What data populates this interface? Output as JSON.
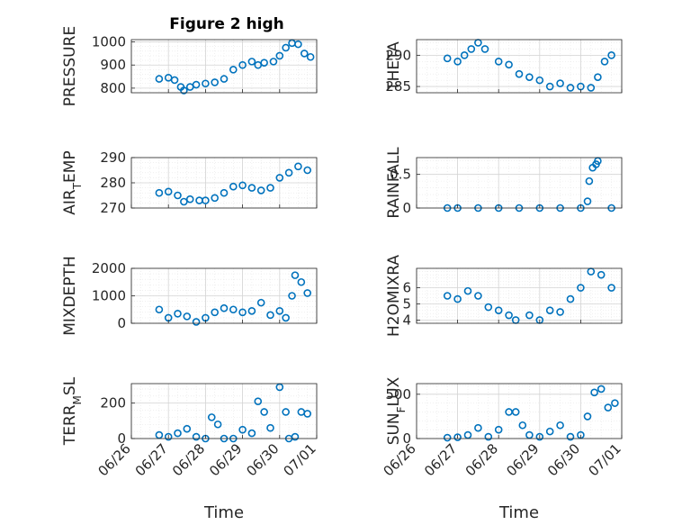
{
  "figure": {
    "title": "Figure 2 high"
  },
  "colors": {
    "marker": "#0072BD",
    "axis": "#262626",
    "grid": "#d4d4d4",
    "minor_grid": "#e6e6e6"
  },
  "chart_data": [
    {
      "type": "scatter",
      "title": "Figure 2 high",
      "ylabel": "PRESSURE",
      "xlabel": "",
      "x_type": "date",
      "xlim": [
        "06/26",
        "07/01"
      ],
      "x_tick_labels": [],
      "ylim": [
        780,
        1010
      ],
      "yticks": [
        800,
        900,
        1000
      ],
      "ytick_labels": [
        "800",
        "900",
        "1000"
      ],
      "grid": true,
      "series": [
        {
          "points": [
            [
              "06/26 18:00",
              840
            ],
            [
              "06/27 00:00",
              845
            ],
            [
              "06/27 04:00",
              835
            ],
            [
              "06/27 08:00",
              805
            ],
            [
              "06/27 10:00",
              790
            ],
            [
              "06/27 14:00",
              805
            ],
            [
              "06/27 18:00",
              815
            ],
            [
              "06/28 00:00",
              820
            ],
            [
              "06/28 06:00",
              825
            ],
            [
              "06/28 12:00",
              840
            ],
            [
              "06/28 18:00",
              880
            ],
            [
              "06/29 00:00",
              900
            ],
            [
              "06/29 06:00",
              915
            ],
            [
              "06/29 10:00",
              900
            ],
            [
              "06/29 14:00",
              910
            ],
            [
              "06/29 20:00",
              915
            ],
            [
              "06/30 00:00",
              940
            ],
            [
              "06/30 04:00",
              975
            ],
            [
              "06/30 08:00",
              995
            ],
            [
              "06/30 12:00",
              990
            ],
            [
              "06/30 16:00",
              950
            ],
            [
              "06/30 20:00",
              935
            ]
          ]
        }
      ]
    },
    {
      "type": "scatter",
      "ylabel": "THETA",
      "xlabel": "",
      "x_type": "date",
      "xlim": [
        "06/26",
        "07/01"
      ],
      "x_tick_labels": [],
      "ylim": [
        284,
        292.5
      ],
      "yticks": [
        285,
        290
      ],
      "ytick_labels": [
        "285",
        "290"
      ],
      "grid": true,
      "series": [
        {
          "points": [
            [
              "06/26 18:00",
              289.5
            ],
            [
              "06/27 00:00",
              289
            ],
            [
              "06/27 04:00",
              290
            ],
            [
              "06/27 08:00",
              291
            ],
            [
              "06/27 12:00",
              292
            ],
            [
              "06/27 16:00",
              291
            ],
            [
              "06/28 00:00",
              289
            ],
            [
              "06/28 06:00",
              288.5
            ],
            [
              "06/28 12:00",
              287
            ],
            [
              "06/28 18:00",
              286.5
            ],
            [
              "06/29 00:00",
              286
            ],
            [
              "06/29 06:00",
              285
            ],
            [
              "06/29 12:00",
              285.5
            ],
            [
              "06/29 18:00",
              284.8
            ],
            [
              "06/30 00:00",
              285
            ],
            [
              "06/30 06:00",
              284.8
            ],
            [
              "06/30 10:00",
              286.5
            ],
            [
              "06/30 14:00",
              289
            ],
            [
              "06/30 18:00",
              290
            ]
          ]
        }
      ]
    },
    {
      "type": "scatter",
      "ylabel": "AIR_TEMP",
      "xlabel": "",
      "x_type": "date",
      "xlim": [
        "06/26",
        "07/01"
      ],
      "x_tick_labels": [],
      "ylim": [
        270,
        290
      ],
      "yticks": [
        270,
        280,
        290
      ],
      "ytick_labels": [
        "270",
        "280",
        "290"
      ],
      "grid": true,
      "series": [
        {
          "points": [
            [
              "06/26 18:00",
              276
            ],
            [
              "06/27 00:00",
              276.5
            ],
            [
              "06/27 06:00",
              275
            ],
            [
              "06/27 10:00",
              272.5
            ],
            [
              "06/27 14:00",
              273.5
            ],
            [
              "06/27 20:00",
              273
            ],
            [
              "06/28 00:00",
              273
            ],
            [
              "06/28 06:00",
              274
            ],
            [
              "06/28 12:00",
              276
            ],
            [
              "06/28 18:00",
              278.5
            ],
            [
              "06/29 00:00",
              279
            ],
            [
              "06/29 06:00",
              278
            ],
            [
              "06/29 12:00",
              277
            ],
            [
              "06/29 18:00",
              278
            ],
            [
              "06/30 00:00",
              282
            ],
            [
              "06/30 06:00",
              284
            ],
            [
              "06/30 12:00",
              286.5
            ],
            [
              "06/30 18:00",
              285
            ]
          ]
        }
      ]
    },
    {
      "type": "scatter",
      "ylabel": "RAINFALL",
      "xlabel": "",
      "x_type": "date",
      "xlim": [
        "06/26",
        "07/01"
      ],
      "x_tick_labels": [],
      "ylim": [
        0,
        0.75
      ],
      "yticks": [
        0,
        0.5
      ],
      "ytick_labels": [
        "0",
        "0.5"
      ],
      "grid": true,
      "series": [
        {
          "points": [
            [
              "06/26 18:00",
              0
            ],
            [
              "06/27 00:00",
              0
            ],
            [
              "06/27 12:00",
              0
            ],
            [
              "06/28 00:00",
              0
            ],
            [
              "06/28 12:00",
              0
            ],
            [
              "06/29 00:00",
              0
            ],
            [
              "06/29 12:00",
              0
            ],
            [
              "06/30 00:00",
              0
            ],
            [
              "06/30 04:00",
              0.1
            ],
            [
              "06/30 05:00",
              0.4
            ],
            [
              "06/30 07:00",
              0.6
            ],
            [
              "06/30 09:00",
              0.65
            ],
            [
              "06/30 10:00",
              0.7
            ],
            [
              "06/30 18:00",
              0
            ]
          ]
        }
      ]
    },
    {
      "type": "scatter",
      "ylabel": "MIXDEPTH",
      "xlabel": "",
      "x_type": "date",
      "xlim": [
        "06/26",
        "07/01"
      ],
      "x_tick_labels": [],
      "ylim": [
        0,
        2000
      ],
      "yticks": [
        0,
        1000,
        2000
      ],
      "ytick_labels": [
        "0",
        "1000",
        "2000"
      ],
      "grid": true,
      "series": [
        {
          "points": [
            [
              "06/26 18:00",
              500
            ],
            [
              "06/27 00:00",
              200
            ],
            [
              "06/27 06:00",
              350
            ],
            [
              "06/27 12:00",
              250
            ],
            [
              "06/27 18:00",
              50
            ],
            [
              "06/28 00:00",
              200
            ],
            [
              "06/28 06:00",
              400
            ],
            [
              "06/28 12:00",
              550
            ],
            [
              "06/28 18:00",
              500
            ],
            [
              "06/29 00:00",
              400
            ],
            [
              "06/29 06:00",
              450
            ],
            [
              "06/29 12:00",
              750
            ],
            [
              "06/29 18:00",
              300
            ],
            [
              "06/30 00:00",
              450
            ],
            [
              "06/30 04:00",
              200
            ],
            [
              "06/30 08:00",
              1000
            ],
            [
              "06/30 10:00",
              1750
            ],
            [
              "06/30 14:00",
              1500
            ],
            [
              "06/30 18:00",
              1100
            ]
          ]
        }
      ]
    },
    {
      "type": "scatter",
      "ylabel": "H2OMIXRA",
      "xlabel": "",
      "x_type": "date",
      "xlim": [
        "06/26",
        "07/01"
      ],
      "x_tick_labels": [],
      "ylim": [
        3.8,
        7.2
      ],
      "yticks": [
        4,
        5,
        6
      ],
      "ytick_labels": [
        "4",
        "5",
        "6"
      ],
      "grid": true,
      "series": [
        {
          "points": [
            [
              "06/26 18:00",
              5.5
            ],
            [
              "06/27 00:00",
              5.3
            ],
            [
              "06/27 06:00",
              5.8
            ],
            [
              "06/27 12:00",
              5.5
            ],
            [
              "06/27 18:00",
              4.8
            ],
            [
              "06/28 00:00",
              4.6
            ],
            [
              "06/28 06:00",
              4.3
            ],
            [
              "06/28 10:00",
              4.0
            ],
            [
              "06/28 18:00",
              4.3
            ],
            [
              "06/29 00:00",
              4.0
            ],
            [
              "06/29 06:00",
              4.6
            ],
            [
              "06/29 12:00",
              4.5
            ],
            [
              "06/29 18:00",
              5.3
            ],
            [
              "06/30 00:00",
              6.0
            ],
            [
              "06/30 06:00",
              7.0
            ],
            [
              "06/30 12:00",
              6.8
            ],
            [
              "06/30 18:00",
              6.0
            ]
          ]
        }
      ]
    },
    {
      "type": "scatter",
      "ylabel": "TERR_MSL",
      "xlabel": "Time",
      "x_type": "date",
      "xlim": [
        "06/26",
        "07/01"
      ],
      "x_tick_labels": [
        "06/26",
        "06/27",
        "06/28",
        "06/29",
        "06/30",
        "07/01"
      ],
      "ylim": [
        0,
        310
      ],
      "yticks": [
        0,
        200
      ],
      "ytick_labels": [
        "0",
        "200"
      ],
      "grid": true,
      "series": [
        {
          "points": [
            [
              "06/26 18:00",
              20
            ],
            [
              "06/27 00:00",
              10
            ],
            [
              "06/27 06:00",
              30
            ],
            [
              "06/27 12:00",
              55
            ],
            [
              "06/27 18:00",
              10
            ],
            [
              "06/28 00:00",
              0
            ],
            [
              "06/28 04:00",
              120
            ],
            [
              "06/28 08:00",
              80
            ],
            [
              "06/28 12:00",
              0
            ],
            [
              "06/28 18:00",
              0
            ],
            [
              "06/29 00:00",
              50
            ],
            [
              "06/29 06:00",
              30
            ],
            [
              "06/29 10:00",
              210
            ],
            [
              "06/29 14:00",
              150
            ],
            [
              "06/29 18:00",
              60
            ],
            [
              "06/30 00:00",
              290
            ],
            [
              "06/30 04:00",
              150
            ],
            [
              "06/30 06:00",
              0
            ],
            [
              "06/30 10:00",
              10
            ],
            [
              "06/30 14:00",
              150
            ],
            [
              "06/30 18:00",
              140
            ]
          ]
        }
      ]
    },
    {
      "type": "scatter",
      "ylabel": "SUN_FLUX",
      "xlabel": "Time",
      "x_type": "date",
      "xlim": [
        "06/26",
        "07/01"
      ],
      "x_tick_labels": [
        "06/26",
        "06/27",
        "06/28",
        "06/29",
        "06/30",
        "07/01"
      ],
      "ylim": [
        0,
        620
      ],
      "yticks": [
        0,
        500
      ],
      "ytick_labels": [
        "0",
        "500"
      ],
      "grid": true,
      "series": [
        {
          "points": [
            [
              "06/26 18:00",
              10
            ],
            [
              "06/27 00:00",
              15
            ],
            [
              "06/27 06:00",
              40
            ],
            [
              "06/27 12:00",
              120
            ],
            [
              "06/27 18:00",
              20
            ],
            [
              "06/28 00:00",
              100
            ],
            [
              "06/28 06:00",
              300
            ],
            [
              "06/28 10:00",
              300
            ],
            [
              "06/28 14:00",
              150
            ],
            [
              "06/28 18:00",
              40
            ],
            [
              "06/29 00:00",
              20
            ],
            [
              "06/29 06:00",
              80
            ],
            [
              "06/29 12:00",
              150
            ],
            [
              "06/29 18:00",
              20
            ],
            [
              "06/30 00:00",
              40
            ],
            [
              "06/30 04:00",
              250
            ],
            [
              "06/30 08:00",
              520
            ],
            [
              "06/30 12:00",
              560
            ],
            [
              "06/30 16:00",
              350
            ],
            [
              "06/30 20:00",
              400
            ]
          ]
        }
      ]
    }
  ]
}
